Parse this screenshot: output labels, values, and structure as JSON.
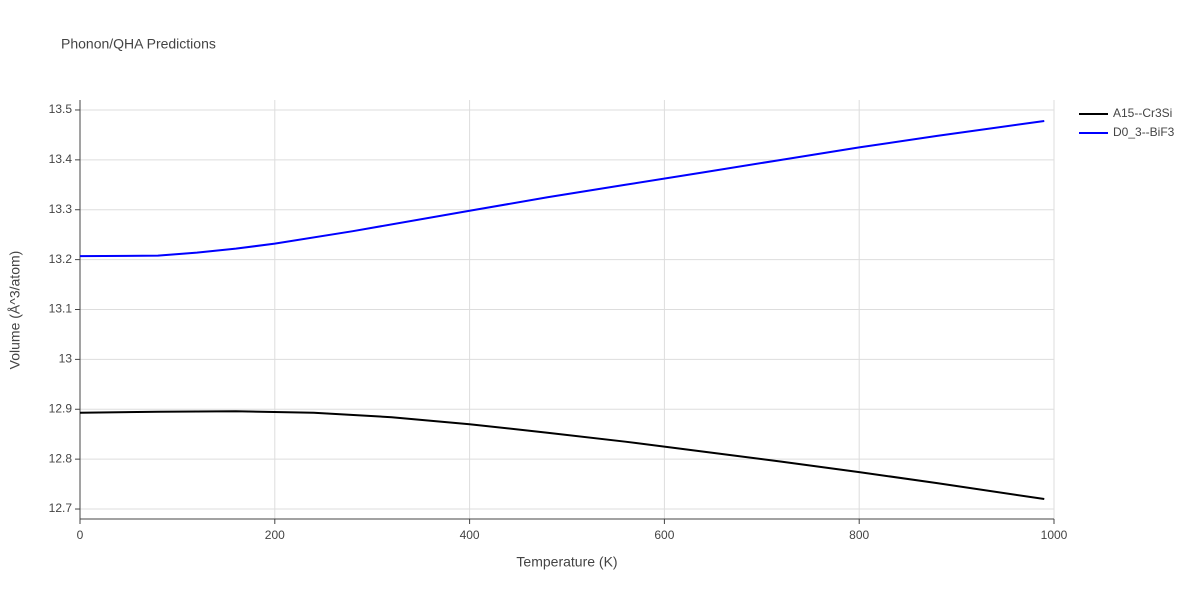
{
  "chart_data": {
    "type": "line",
    "title": "Phonon/QHA Predictions",
    "x_label": "Temperature (K)",
    "y_label": "Volume (Å^3/atom)",
    "xlim": [
      0,
      1000
    ],
    "xticks": [
      0,
      200,
      400,
      600,
      800,
      1000
    ],
    "ylim": [
      12.68,
      13.52
    ],
    "yticks": [
      12.7,
      12.8,
      12.9,
      13,
      13.1,
      13.2,
      13.3,
      13.4,
      13.5
    ],
    "grid": true,
    "legend": "right",
    "series": [
      {
        "name": "A15--Cr3Si",
        "color": "#000000",
        "x": [
          0,
          80,
          160,
          240,
          320,
          400,
          480,
          560,
          640,
          720,
          800,
          880,
          990
        ],
        "values": [
          12.893,
          12.895,
          12.896,
          12.893,
          12.884,
          12.87,
          12.853,
          12.835,
          12.815,
          12.795,
          12.774,
          12.752,
          12.72
        ]
      },
      {
        "name": "D0_3--BiF3",
        "color": "#0000ff",
        "x": [
          0,
          80,
          120,
          160,
          200,
          280,
          400,
          480,
          560,
          640,
          720,
          800,
          880,
          990
        ],
        "values": [
          13.207,
          13.208,
          13.214,
          13.222,
          13.232,
          13.257,
          13.298,
          13.325,
          13.35,
          13.375,
          13.4,
          13.425,
          13.448,
          13.478
        ]
      }
    ]
  }
}
